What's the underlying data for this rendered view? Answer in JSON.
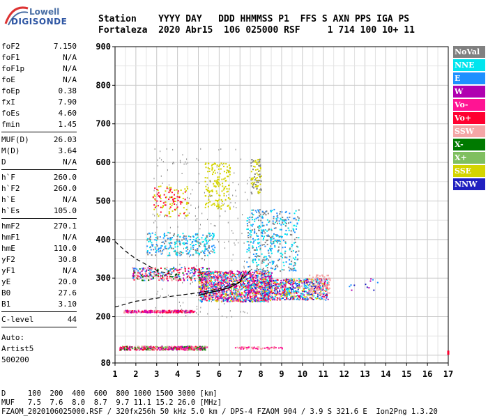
{
  "logo": {
    "line1": "Lowell",
    "line2": "DIGISONDE"
  },
  "header": {
    "labels": "Station    YYYY DAY   DDD HHMMSS P1  FFS S AXN PPS IGA PS",
    "values": "Fortaleza  2020 Abr15  106 025000 RSF     1 714 100 10+ 11"
  },
  "params": {
    "group1": [
      {
        "k": "foF2",
        "v": "7.150"
      },
      {
        "k": "foF1",
        "v": "N/A"
      },
      {
        "k": "foF1p",
        "v": "N/A"
      },
      {
        "k": "foE",
        "v": "N/A"
      },
      {
        "k": "foEp",
        "v": "0.38"
      },
      {
        "k": "fxI",
        "v": "7.90"
      },
      {
        "k": "foEs",
        "v": "4.60"
      },
      {
        "k": "fmin",
        "v": "1.45"
      }
    ],
    "group2": [
      {
        "k": "MUF(D)",
        "v": "26.03"
      },
      {
        "k": "M(D)",
        "v": "3.64"
      },
      {
        "k": "D",
        "v": "N/A"
      }
    ],
    "group3": [
      {
        "k": "h`F",
        "v": "260.0"
      },
      {
        "k": "h`F2",
        "v": "260.0"
      },
      {
        "k": "h`E",
        "v": "N/A"
      },
      {
        "k": "h`Es",
        "v": "105.0"
      }
    ],
    "group4": [
      {
        "k": "hmF2",
        "v": "270.1"
      },
      {
        "k": "hmF1",
        "v": "N/A"
      },
      {
        "k": "hmE",
        "v": "110.0"
      },
      {
        "k": "yF2",
        "v": "30.8"
      },
      {
        "k": "yF1",
        "v": "N/A"
      },
      {
        "k": "yE",
        "v": "20.0"
      },
      {
        "k": "B0",
        "v": "27.6"
      },
      {
        "k": "B1",
        "v": "3.10"
      }
    ],
    "group5": [
      {
        "k": "C-level",
        "v": "44"
      }
    ],
    "auto": [
      "Auto:",
      "Artist5",
      "500200"
    ]
  },
  "legend": [
    {
      "label": "NoVal",
      "color": "#808080"
    },
    {
      "label": "NNE",
      "color": "#00e5ee"
    },
    {
      "label": "E",
      "color": "#1e90ff"
    },
    {
      "label": "W",
      "color": "#b000b0"
    },
    {
      "label": "Vo-",
      "color": "#ff1493"
    },
    {
      "label": "Vo+",
      "color": "#ff0030"
    },
    {
      "label": "SSW",
      "color": "#f4a6a6"
    },
    {
      "label": "X-",
      "color": "#007a00"
    },
    {
      "label": "X+",
      "color": "#7fbf5f"
    },
    {
      "label": "SSE",
      "color": "#d4d400"
    },
    {
      "label": "NNW",
      "color": "#2020c0"
    }
  ],
  "chart_data": {
    "type": "scatter",
    "x_ticks": [
      "1",
      "2",
      "3",
      "4",
      "5",
      "6",
      "7",
      "8",
      "9",
      "10",
      "11",
      "12",
      "13",
      "14",
      "15",
      "16",
      "17"
    ],
    "y_ticks": [
      "80",
      "200",
      "300",
      "400",
      "500",
      "600",
      "700",
      "800",
      "900"
    ],
    "xlim": [
      1,
      17
    ],
    "ylim": [
      80,
      900
    ],
    "grid": true,
    "trace_f2": {
      "x": [
        5.0,
        5.5,
        6.0,
        6.5,
        7.0,
        7.15
      ],
      "y": [
        255,
        262,
        268,
        275,
        290,
        310
      ]
    },
    "profile": {
      "x": [
        1.0,
        2.0,
        3.0,
        4.0,
        5.0,
        6.0,
        7.0,
        7.5
      ],
      "y": [
        225,
        240,
        248,
        255,
        262,
        272,
        290,
        320
      ]
    },
    "upper_curve": {
      "x": [
        1.0,
        1.5,
        2.0,
        2.5,
        3.0,
        3.5,
        4.0
      ],
      "y": [
        395,
        370,
        350,
        335,
        320,
        312,
        308
      ]
    }
  },
  "footer": {
    "line1": "D     100  200  400  600  800 1000 1500 3000 [km]",
    "line2": "MUF   7.5  7.6  8.0  8.7  9.7 11.1 15.2 26.0 [MHz]",
    "line3": "FZAOM_2020106025000.RSF / 320fx256h 50 kHz 5.0 km / DPS-4 FZAOM 904 / 3.9 S 321.6 E  Ion2Png 1.3.20"
  }
}
